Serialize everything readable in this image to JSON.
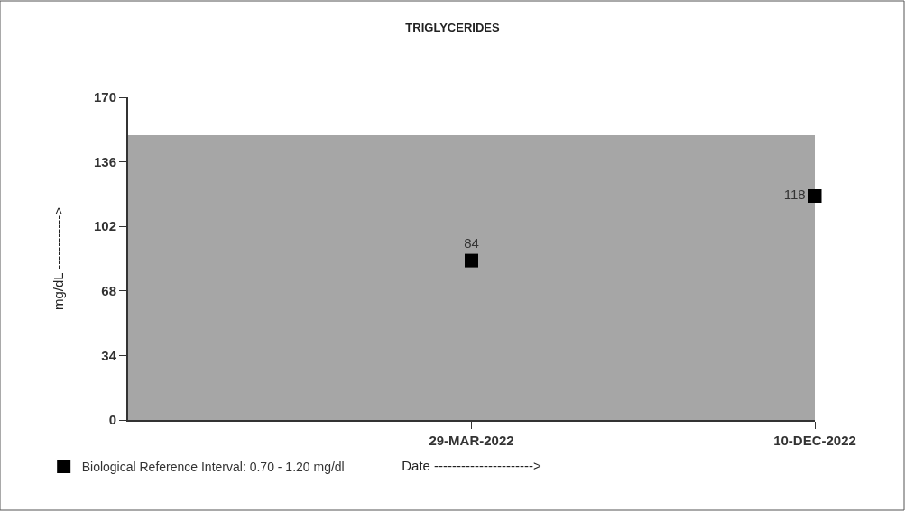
{
  "chart_data": {
    "type": "scatter",
    "title": "TRIGLYCERIDES",
    "xlabel": "Date ---------------------->",
    "ylabel": "mg/dL ------------>",
    "categories": [
      null,
      "29-MAR-2022",
      "10-DEC-2022"
    ],
    "series": [
      {
        "name": "Biological Reference Interval: 0.70 - 1.20 mg/dl",
        "color": "#000000",
        "values": [
          null,
          84,
          118
        ]
      }
    ],
    "ylim": [
      0,
      170
    ],
    "yticks": [
      0,
      34,
      68,
      102,
      136,
      170
    ],
    "bands": [
      {
        "axis": "y",
        "from": 0,
        "to": 150,
        "color": "#a6a6a6"
      }
    ],
    "marker": "square",
    "data_labels": true,
    "legend": "bottom left",
    "grid": false
  }
}
